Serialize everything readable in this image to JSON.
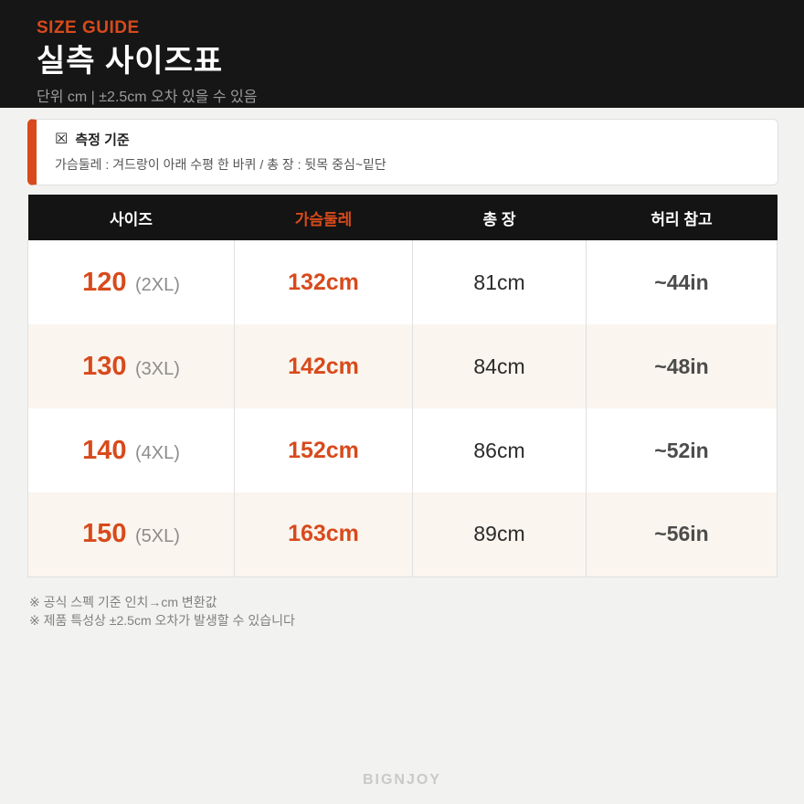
{
  "colors": {
    "accent": "#d84a1c",
    "header-bg": "#161616",
    "page-bg": "#f2f3f1",
    "row-alt": "#faf5ee",
    "border": "#e0e0e0"
  },
  "header": {
    "eyebrow": "SIZE GUIDE",
    "title": "실측 사이즈표",
    "subtitle": "단위 cm  |  ±2.5cm 오차 있을 수 있음"
  },
  "notice": {
    "icon": "☒",
    "title": "측정 기준",
    "body": "가슴둘레 : 겨드랑이 아래 수평 한 바퀴  /  총 장 : 뒷목 중심~밑단"
  },
  "table": {
    "columns": [
      {
        "label": "사이즈"
      },
      {
        "label": "가슴둘레",
        "accent": true
      },
      {
        "label": "총 장"
      },
      {
        "label": "허리 참고"
      }
    ],
    "rows": [
      {
        "size": "120",
        "variant": "(2XL)",
        "chest": "132cm",
        "length": "81cm",
        "waist": "~44in"
      },
      {
        "size": "130",
        "variant": "(3XL)",
        "chest": "142cm",
        "length": "84cm",
        "waist": "~48in"
      },
      {
        "size": "140",
        "variant": "(4XL)",
        "chest": "152cm",
        "length": "86cm",
        "waist": "~52in"
      },
      {
        "size": "150",
        "variant": "(5XL)",
        "chest": "163cm",
        "length": "89cm",
        "waist": "~56in"
      }
    ]
  },
  "footnotes": [
    "※ 공식 스펙 기준 인치→cm 변환값",
    "※ 제품 특성상 ±2.5cm 오차가 발생할 수 있습니다"
  ],
  "watermark": "BIGNJOY"
}
